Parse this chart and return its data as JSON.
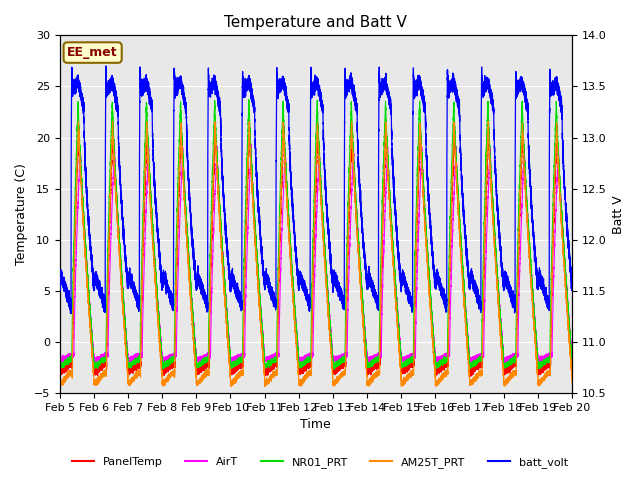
{
  "title": "Temperature and Batt V",
  "xlabel": "Time",
  "ylabel_left": "Temperature (C)",
  "ylabel_right": "Batt V",
  "annotation": "EE_met",
  "ylim_left": [
    -5,
    30
  ],
  "ylim_right": [
    10.5,
    14.0
  ],
  "x_tick_labels": [
    "Feb 5",
    "Feb 6",
    "Feb 7",
    "Feb 8",
    "Feb 9",
    "Feb 10",
    "Feb 11",
    "Feb 12",
    "Feb 13",
    "Feb 14",
    "Feb 15",
    "Feb 16",
    "Feb 17",
    "Feb 18",
    "Feb 19",
    "Feb 20"
  ],
  "yticks_left": [
    -5,
    0,
    5,
    10,
    15,
    20,
    25,
    30
  ],
  "yticks_right": [
    10.5,
    11.0,
    11.5,
    12.0,
    12.5,
    13.0,
    13.5,
    14.0
  ],
  "series_colors": {
    "PanelTemp": "#ff0000",
    "AirT": "#ff00ff",
    "NR01_PRT": "#00dd00",
    "AM25T_PRT": "#ff8800",
    "batt_volt": "#0000ff"
  },
  "background_color": "#ffffff",
  "plot_bg_color": "#e8e8e8",
  "grid_color": "#ffffff",
  "num_days": 15,
  "ppd": 1440,
  "annotation_color": "#880000",
  "annotation_bg": "#ffffcc",
  "annotation_edge": "#886600"
}
